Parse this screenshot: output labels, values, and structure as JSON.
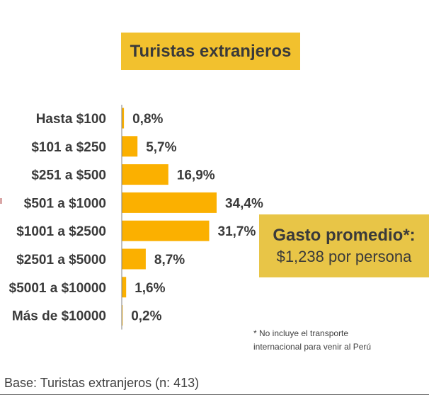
{
  "colors": {
    "bar": "#fbb000",
    "title_bg": "#f2c12e",
    "callout_bg": "#e8c547",
    "axis": "#7f7f7f",
    "text": "#404040"
  },
  "chart_data": {
    "type": "bar",
    "orientation": "horizontal",
    "title": "Turistas extranjeros",
    "categories": [
      "Hasta $100",
      "$101 a $250",
      "$251 a  $500",
      "$501 a  $1000",
      "$1001 a $2500",
      "$2501 a $5000",
      "$5001 a $10000",
      "Más de $10000"
    ],
    "values": [
      0.8,
      5.7,
      16.9,
      34.4,
      31.7,
      8.7,
      1.6,
      0.2
    ],
    "value_labels": [
      "0,8%",
      "5,7%",
      "16,9%",
      "34,4%",
      "31,7%",
      "8,7%",
      "1,6%",
      "0,2%"
    ],
    "unit": "%",
    "xlim": [
      0,
      34.4
    ],
    "xlabel": "",
    "ylabel": "",
    "grid": false
  },
  "callout": {
    "title": "Gasto promedio*:",
    "value": "$1,238 por persona"
  },
  "footnote": {
    "line1": "* No incluye el transporte",
    "line2": "internacional para venir al Perú"
  },
  "base": "Base: Turistas extranjeros (n: 413)"
}
